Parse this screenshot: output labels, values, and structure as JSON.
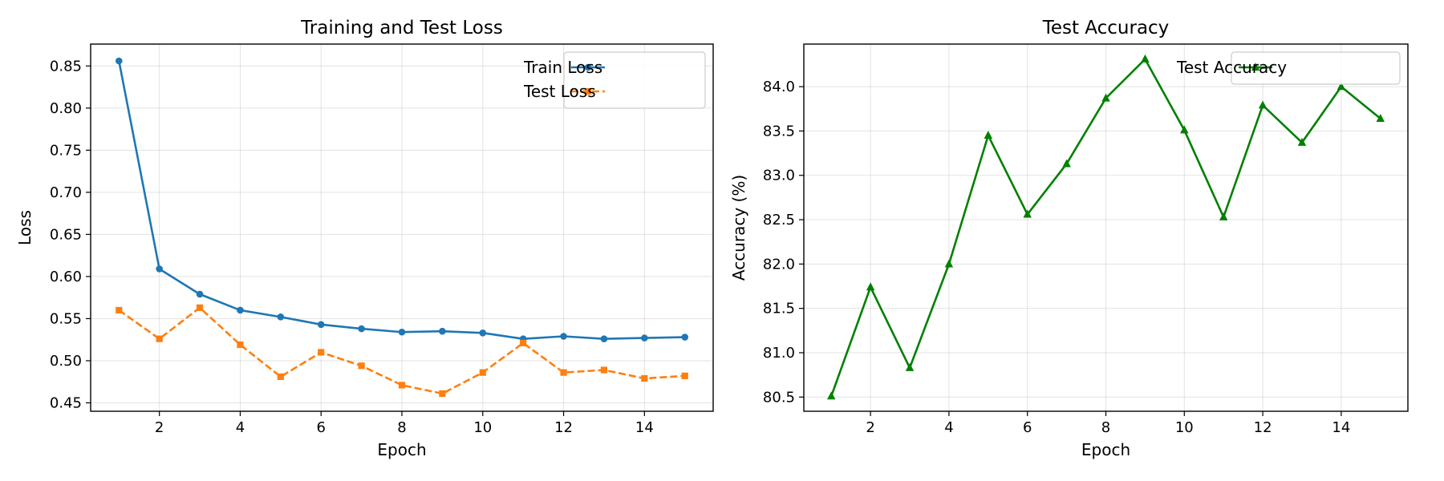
{
  "chart_data": [
    {
      "type": "line",
      "title": "Training and Test Loss",
      "xlabel": "Epoch",
      "ylabel": "Loss",
      "x": [
        1,
        2,
        3,
        4,
        5,
        6,
        7,
        8,
        9,
        10,
        11,
        12,
        13,
        14,
        15
      ],
      "xlim": [
        0.3,
        15.7
      ],
      "ylim": [
        0.44,
        0.876
      ],
      "xticks": [
        2,
        4,
        6,
        8,
        10,
        12,
        14
      ],
      "yticks": [
        0.45,
        0.5,
        0.55,
        0.6,
        0.65,
        0.7,
        0.75,
        0.8,
        0.85
      ],
      "ytick_labels": [
        "0.45",
        "0.50",
        "0.55",
        "0.60",
        "0.65",
        "0.70",
        "0.75",
        "0.80",
        "0.85"
      ],
      "grid": true,
      "legend": "top-right",
      "series": [
        {
          "name": "Train Loss",
          "color": "#1f77b4",
          "line_style": "solid",
          "marker": "circle",
          "values": [
            0.856,
            0.609,
            0.579,
            0.56,
            0.552,
            0.543,
            0.538,
            0.534,
            0.535,
            0.533,
            0.526,
            0.529,
            0.526,
            0.527,
            0.528
          ]
        },
        {
          "name": "Test Loss",
          "color": "#ff7f0e",
          "line_style": "dashed",
          "marker": "square",
          "values": [
            0.56,
            0.526,
            0.563,
            0.519,
            0.481,
            0.51,
            0.494,
            0.471,
            0.461,
            0.486,
            0.521,
            0.486,
            0.489,
            0.479,
            0.482
          ]
        }
      ]
    },
    {
      "type": "line",
      "title": "Test Accuracy",
      "xlabel": "Epoch",
      "ylabel": "Accuracy (%)",
      "x": [
        1,
        2,
        3,
        4,
        5,
        6,
        7,
        8,
        9,
        10,
        11,
        12,
        13,
        14,
        15
      ],
      "xlim": [
        0.3,
        15.7
      ],
      "ylim": [
        80.34,
        84.48
      ],
      "xticks": [
        2,
        4,
        6,
        8,
        10,
        12,
        14
      ],
      "yticks": [
        80.5,
        81.0,
        81.5,
        82.0,
        82.5,
        83.0,
        83.5,
        84.0
      ],
      "ytick_labels": [
        "80.5",
        "81.0",
        "81.5",
        "82.0",
        "82.5",
        "83.0",
        "83.5",
        "84.0"
      ],
      "grid": true,
      "legend": "top-right",
      "series": [
        {
          "name": "Test Accuracy",
          "color": "#008000",
          "line_style": "solid",
          "marker": "triangle",
          "values": [
            80.51,
            81.74,
            80.83,
            82.0,
            83.45,
            82.56,
            83.13,
            83.87,
            84.31,
            83.51,
            82.53,
            83.79,
            83.37,
            84.0,
            83.64
          ]
        }
      ]
    }
  ]
}
